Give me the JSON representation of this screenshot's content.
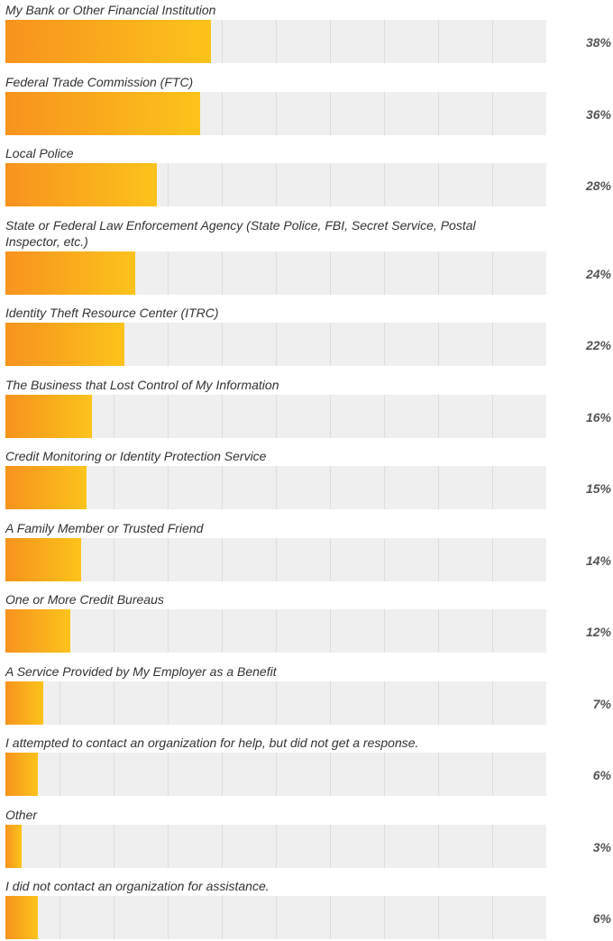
{
  "chart_data": {
    "type": "bar",
    "orientation": "horizontal",
    "categories": [
      "My Bank or Other Financial Institution",
      "Federal Trade Commission (FTC)",
      "Local Police",
      "State or Federal Law Enforcement Agency (State Police, FBI, Secret Service, Postal Inspector, etc.)",
      "Identity Theft Resource Center (ITRC)",
      "The Business that Lost Control of My Information",
      "Credit Monitoring or Identity Protection Service",
      "A Family Member or Trusted Friend",
      "One or More Credit Bureaus",
      "A Service Provided by My Employer as a Benefit",
      "I attempted to contact an organization for help, but did not get a response.",
      "Other",
      "I did not contact an organization for assistance."
    ],
    "values": [
      38,
      36,
      28,
      24,
      22,
      16,
      15,
      14,
      12,
      7,
      6,
      3,
      6
    ],
    "value_labels": [
      "38%",
      "36%",
      "28%",
      "24%",
      "22%",
      "16%",
      "15%",
      "14%",
      "12%",
      "7%",
      "6%",
      "3%",
      "6%"
    ],
    "color": [
      "#f7931e",
      "#fcc31b"
    ],
    "xlim": [
      0,
      100
    ],
    "xticks": [
      0,
      10,
      20,
      30,
      40,
      50,
      60,
      70,
      80,
      90,
      100
    ],
    "grid": true
  }
}
